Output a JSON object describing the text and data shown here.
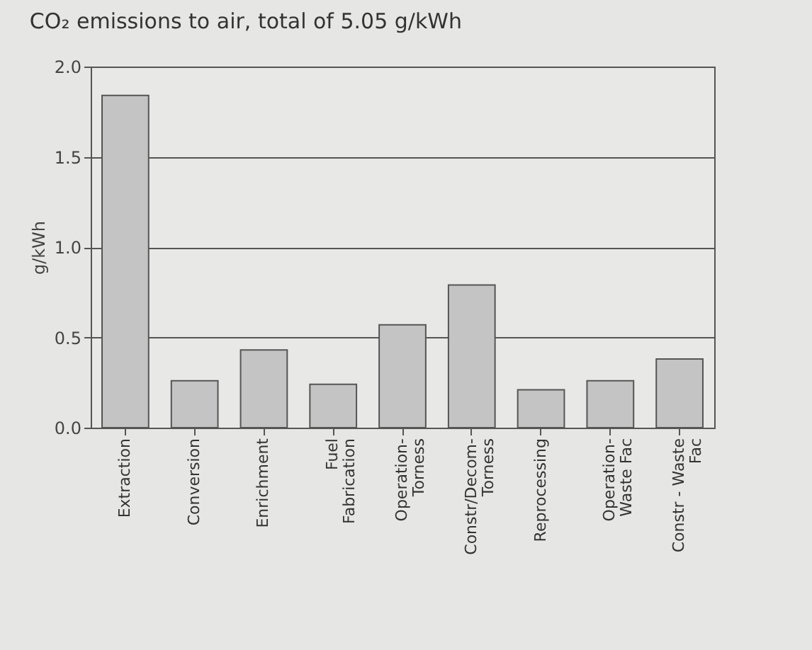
{
  "chart_data": {
    "type": "bar",
    "title": "CO₂ emissions to air, total of 5.05 g/kWh",
    "ylabel": "g/kWh",
    "categories": [
      "Extraction",
      "Conversion",
      "Enrichment",
      "Fuel\nFabrication",
      "Operation-\nTorness",
      "Constr/Decom-\nTorness",
      "Reprocessing",
      "Operation-\nWaste Fac",
      "Constr - Waste\nFac"
    ],
    "values": [
      1.84,
      0.26,
      0.43,
      0.24,
      0.57,
      0.79,
      0.21,
      0.26,
      0.38
    ],
    "color": "#c4c4c4",
    "ylim": [
      0,
      2
    ],
    "yticks": [
      {
        "value": 0,
        "label": "0.0"
      },
      0.5,
      {
        "value": 1,
        "label": "1.0"
      },
      1.5,
      {
        "value": 2,
        "label": "2.0"
      }
    ],
    "grid": "y"
  }
}
